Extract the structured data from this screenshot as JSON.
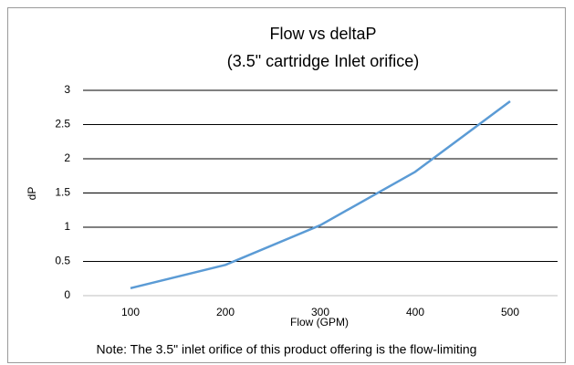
{
  "chart_data": {
    "type": "line",
    "title": "Flow vs deltaP",
    "subtitle": "(3.5\" cartridge Inlet orifice)",
    "x_label": "Flow (GPM)",
    "y_label": "dP",
    "note": "Note: The 3.5\" inlet orifice of this product offering is the flow-limiting",
    "categories": [
      "100",
      "200",
      "300",
      "400",
      "500"
    ],
    "series": [
      {
        "name": "dP",
        "color": "#5b9bd5",
        "values": [
          0.11,
          0.45,
          1.03,
          1.81,
          2.84
        ]
      }
    ],
    "ylim": [
      0,
      3
    ],
    "yticks": [
      0,
      0.5,
      1,
      1.5,
      2,
      2.5,
      3
    ],
    "grid": true
  }
}
